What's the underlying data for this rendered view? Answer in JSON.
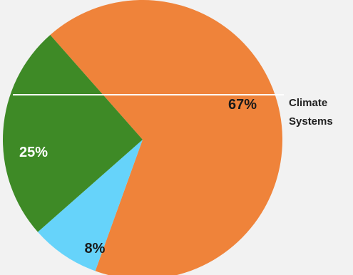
{
  "chart_data": {
    "type": "pie",
    "slices": [
      {
        "label": "67%",
        "value": 67,
        "color": "#ef833a",
        "label_color": "#1a1a1a"
      },
      {
        "label": "8%",
        "value": 8,
        "color": "#66d3fa",
        "label_color": "#1a1a1a"
      },
      {
        "label": "25%",
        "value": 25,
        "color": "#3e8a26",
        "label_color": "#ffffff"
      }
    ],
    "side_label_lines": [
      "Climate",
      "Systems"
    ],
    "background": "#f2f2f2",
    "reference_line_color": "#ffffff"
  }
}
